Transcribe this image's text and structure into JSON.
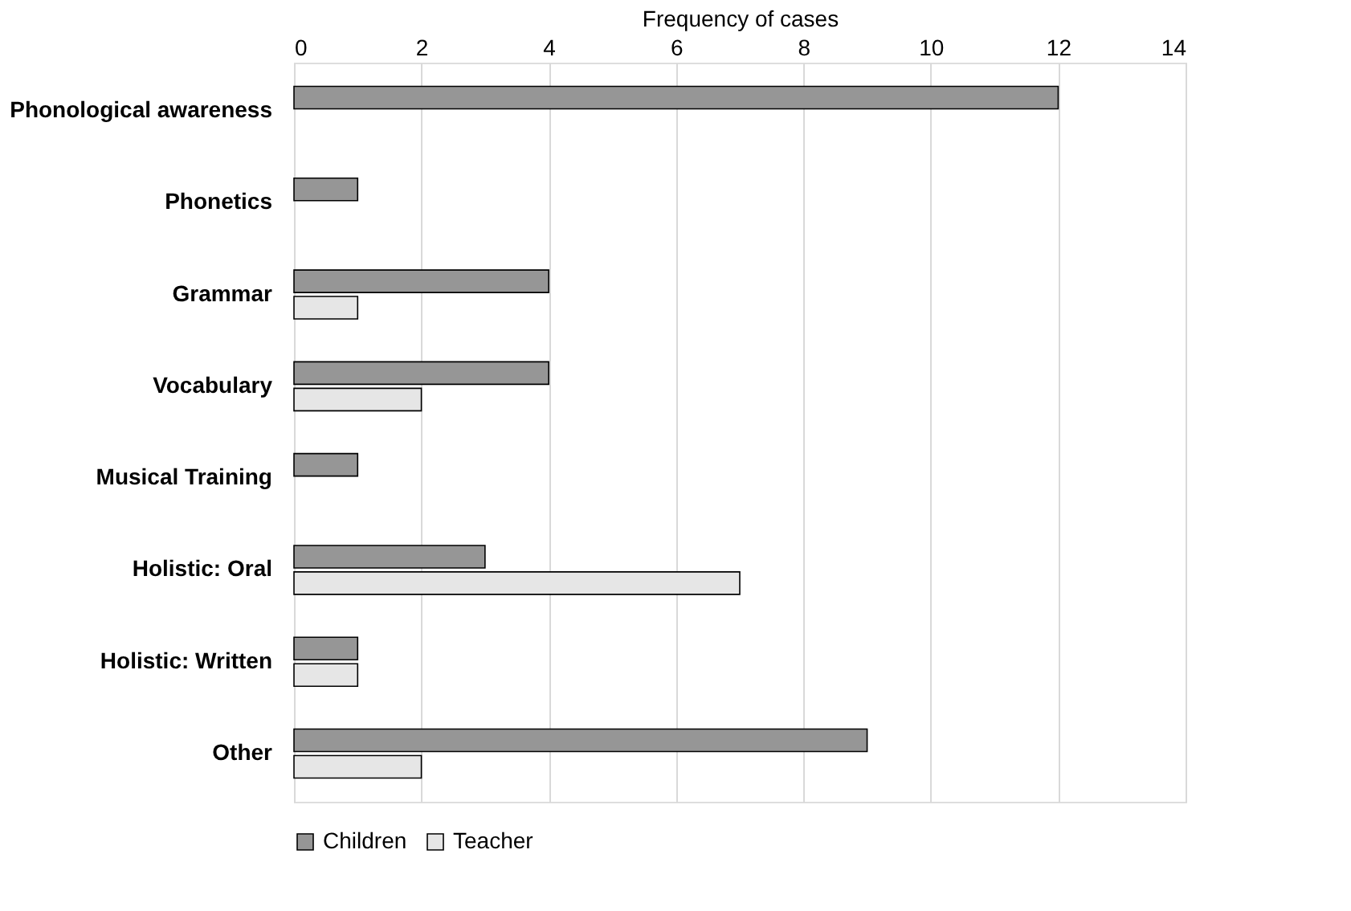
{
  "chart_data": {
    "type": "bar",
    "orientation": "horizontal",
    "xlabel": "Frequency of cases",
    "categories": [
      "Phonological awareness",
      "Phonetics",
      "Grammar",
      "Vocabulary",
      "Musical Training",
      "Holistic: Oral",
      "Holistic: Written",
      "Other"
    ],
    "series": [
      {
        "name": "Children",
        "color": "#969696",
        "values": [
          12,
          1,
          4,
          4,
          1,
          3,
          1,
          9
        ]
      },
      {
        "name": "Teacher",
        "color": "#e6e6e6",
        "values": [
          null,
          null,
          1,
          2,
          null,
          7,
          1,
          2
        ]
      }
    ],
    "xlim": [
      0,
      14
    ],
    "xticks": [
      0,
      2,
      4,
      6,
      8,
      10,
      12,
      14
    ],
    "grid": "x",
    "legend": "bottom"
  }
}
